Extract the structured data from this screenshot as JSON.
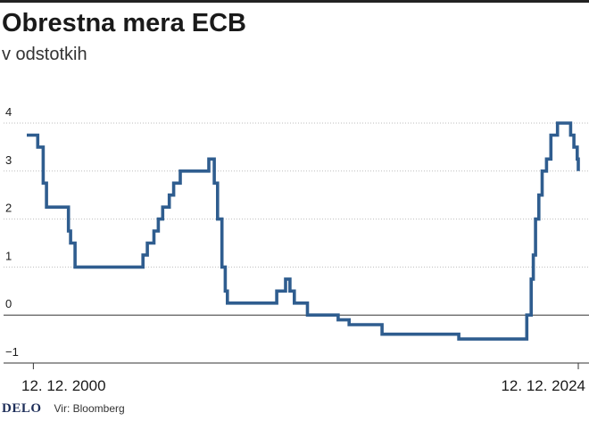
{
  "header": {
    "title": "Obrestna mera ECB",
    "subtitle": "v odstotkih"
  },
  "footer": {
    "brand": "DELO",
    "source": "Vir: Bloomberg"
  },
  "colors": {
    "line": "#2f5d8f",
    "grid": "#bdbdbd",
    "zero_line": "#333333",
    "text": "#1a1a1a"
  },
  "chart_data": {
    "type": "line",
    "step": true,
    "x_unit": "year",
    "xlim": [
      1999.8,
      2024.95
    ],
    "ylim": [
      -1,
      4
    ],
    "yticks": [
      -1,
      0,
      1,
      2,
      3,
      4
    ],
    "ytick_labels": [
      "−1",
      "0",
      "1",
      "2",
      "3",
      "4"
    ],
    "grid": "horizontal dotted",
    "xticks": [
      {
        "x": 2000.1,
        "label": "12. 12. 2000"
      },
      {
        "x": 2024.95,
        "label": "12. 12. 2024"
      }
    ],
    "series": [
      {
        "x": [
          1999.8,
          2000.3,
          2000.55,
          2000.7,
          2000.9,
          2001.7,
          2001.8,
          2002.0,
          2002.5,
          2003.0,
          2003.5,
          2005.1,
          2005.3,
          2005.6,
          2005.8,
          2006.0,
          2006.3,
          2006.5,
          2006.8,
          2007.0,
          2007.6,
          2008.1,
          2008.35,
          2008.5,
          2008.7,
          2008.85,
          2008.95,
          2009.05,
          2009.2,
          2009.5,
          2010.0,
          2011.2,
          2011.6,
          2011.8,
          2012.0,
          2012.3,
          2012.6,
          2013.0,
          2013.6,
          2014.0,
          2014.5,
          2015.0,
          2016.0,
          2017.0,
          2018.0,
          2019.0,
          2019.5,
          2020.0,
          2021.0,
          2022.0,
          2022.6,
          2022.8,
          2022.9,
          2023.0,
          2023.15,
          2023.3,
          2023.5,
          2023.7,
          2024.0,
          2024.25,
          2024.45,
          2024.6,
          2024.75,
          2024.9,
          2024.95
        ],
        "y": [
          3.75,
          3.5,
          2.75,
          2.25,
          2.25,
          1.75,
          1.5,
          1.0,
          1.0,
          1.0,
          1.0,
          1.25,
          1.5,
          1.75,
          2.0,
          2.25,
          2.5,
          2.75,
          3.0,
          3.0,
          3.0,
          3.25,
          2.75,
          2.0,
          1.0,
          0.5,
          0.25,
          0.25,
          0.25,
          0.25,
          0.25,
          0.5,
          0.75,
          0.5,
          0.25,
          0.25,
          0.0,
          0.0,
          0.0,
          -0.1,
          -0.2,
          -0.2,
          -0.4,
          -0.4,
          -0.4,
          -0.4,
          -0.5,
          -0.5,
          -0.5,
          -0.5,
          0.0,
          0.75,
          1.25,
          2.0,
          2.5,
          3.0,
          3.25,
          3.75,
          4.0,
          4.0,
          4.0,
          3.75,
          3.5,
          3.25,
          3.0
        ]
      }
    ]
  }
}
